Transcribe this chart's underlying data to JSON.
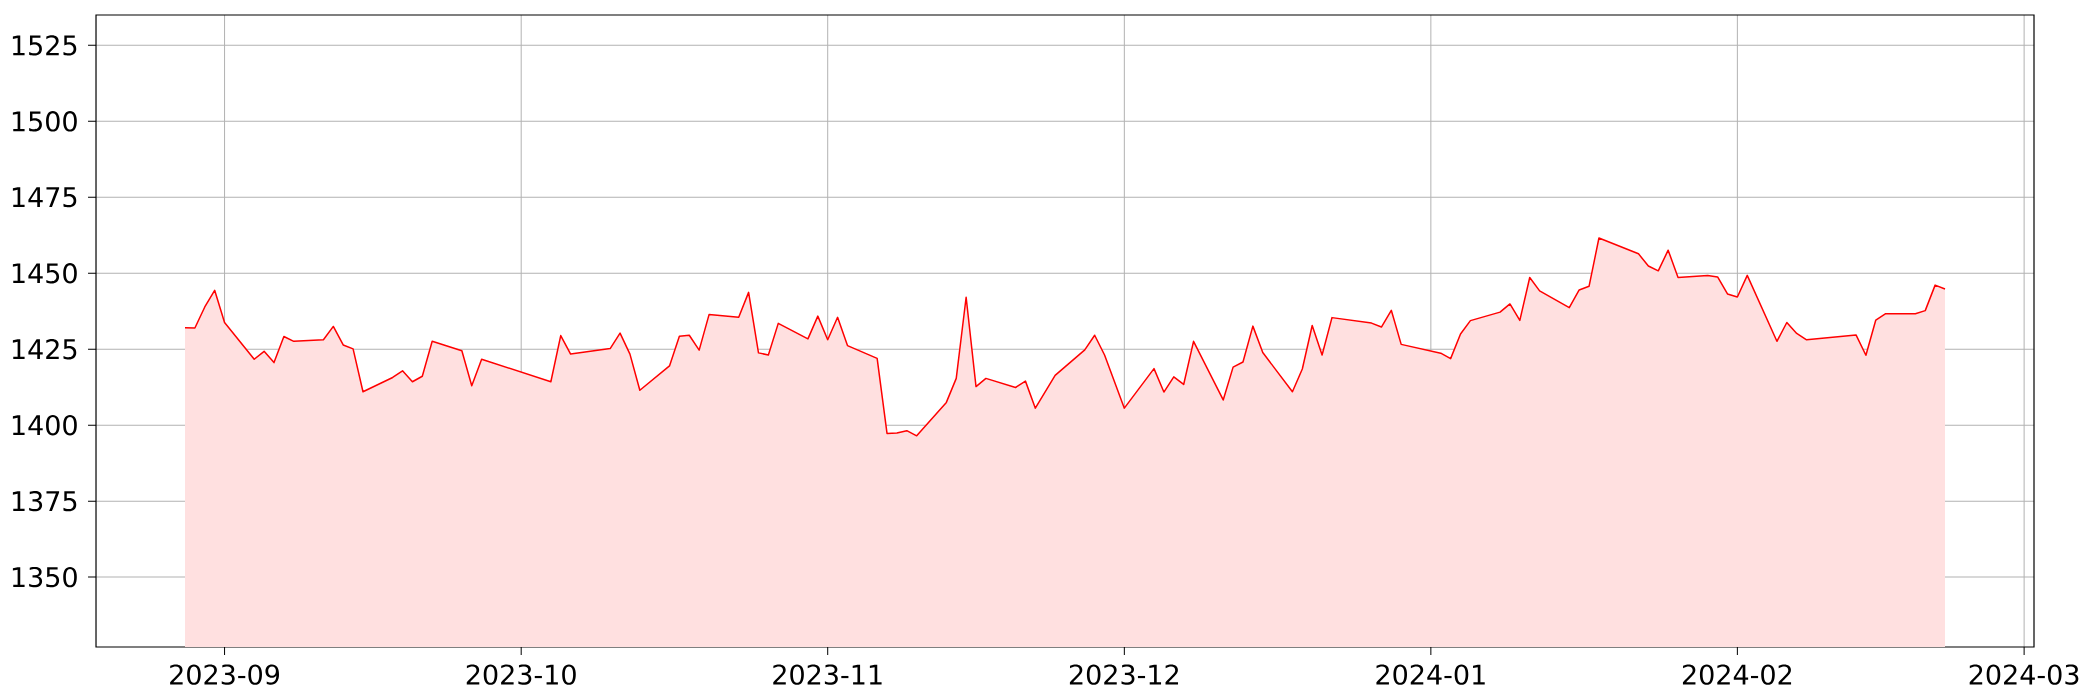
{
  "chart_data": {
    "type": "area",
    "color": "#ff0000",
    "grid": true,
    "xlim": [
      "2023-08-19",
      "2024-03-02"
    ],
    "ylim": [
      1327,
      1535
    ],
    "xticks": [
      {
        "value": "2023-09-01",
        "label": "2023-09"
      },
      {
        "value": "2023-10-01",
        "label": "2023-10"
      },
      {
        "value": "2023-11-01",
        "label": "2023-11"
      },
      {
        "value": "2023-12-01",
        "label": "2023-12"
      },
      {
        "value": "2024-01-01",
        "label": "2024-01"
      },
      {
        "value": "2024-02-01",
        "label": "2024-02"
      },
      {
        "value": "2024-03-01",
        "label": "2024-03"
      }
    ],
    "yticks": [
      1350,
      1375,
      1400,
      1425,
      1450,
      1475,
      1500,
      1525
    ],
    "x": [
      "2023-08-28",
      "2023-08-29",
      "2023-08-30",
      "2023-08-31",
      "2023-09-01",
      "2023-09-04",
      "2023-09-05",
      "2023-09-06",
      "2023-09-07",
      "2023-09-08",
      "2023-09-11",
      "2023-09-12",
      "2023-09-13",
      "2023-09-14",
      "2023-09-15",
      "2023-09-18",
      "2023-09-19",
      "2023-09-20",
      "2023-09-21",
      "2023-09-22",
      "2023-09-25",
      "2023-09-26",
      "2023-09-27",
      "2023-10-04",
      "2023-10-05",
      "2023-10-06",
      "2023-10-10",
      "2023-10-11",
      "2023-10-12",
      "2023-10-13",
      "2023-10-16",
      "2023-10-17",
      "2023-10-18",
      "2023-10-19",
      "2023-10-20",
      "2023-10-23",
      "2023-10-24",
      "2023-10-25",
      "2023-10-26",
      "2023-10-27",
      "2023-10-30",
      "2023-10-31",
      "2023-11-01",
      "2023-11-02",
      "2023-11-03",
      "2023-11-06",
      "2023-11-07",
      "2023-11-08",
      "2023-11-09",
      "2023-11-10",
      "2023-11-13",
      "2023-11-14",
      "2023-11-15",
      "2023-11-16",
      "2023-11-17",
      "2023-11-20",
      "2023-11-21",
      "2023-11-22",
      "2023-11-24",
      "2023-11-27",
      "2023-11-28",
      "2023-11-29",
      "2023-12-01",
      "2023-12-04",
      "2023-12-05",
      "2023-12-06",
      "2023-12-07",
      "2023-12-08",
      "2023-12-11",
      "2023-12-12",
      "2023-12-13",
      "2023-12-14",
      "2023-12-15",
      "2023-12-18",
      "2023-12-19",
      "2023-12-20",
      "2023-12-21",
      "2023-12-22",
      "2023-12-26",
      "2023-12-27",
      "2023-12-28",
      "2023-12-29",
      "2024-01-02",
      "2024-01-03",
      "2024-01-04",
      "2024-01-05",
      "2024-01-08",
      "2024-01-09",
      "2024-01-10",
      "2024-01-11",
      "2024-01-12",
      "2024-01-15",
      "2024-01-16",
      "2024-01-17",
      "2024-01-18",
      "2024-01-22",
      "2024-01-23",
      "2024-01-24",
      "2024-01-25",
      "2024-01-26",
      "2024-01-29",
      "2024-01-30",
      "2024-01-31",
      "2024-02-01",
      "2024-02-02",
      "2024-02-05",
      "2024-02-06",
      "2024-02-07",
      "2024-02-08",
      "2024-02-13",
      "2024-02-14",
      "2024-02-15",
      "2024-02-16",
      "2024-02-19",
      "2024-02-20",
      "2024-02-21",
      "2024-02-22"
    ],
    "values": [
      1432.1,
      1432.0,
      1438.9,
      1444.4,
      1433.8,
      1421.7,
      1424.3,
      1420.6,
      1429.2,
      1427.6,
      1428.1,
      1432.5,
      1426.4,
      1425.1,
      1411.0,
      1415.7,
      1417.9,
      1414.3,
      1416.1,
      1427.6,
      1424.5,
      1413.0,
      1421.7,
      1414.3,
      1429.5,
      1423.4,
      1425.2,
      1430.3,
      1423.4,
      1411.5,
      1419.5,
      1429.3,
      1429.6,
      1424.7,
      1436.4,
      1435.5,
      1443.7,
      1423.8,
      1423.1,
      1433.5,
      1428.4,
      1435.9,
      1428.1,
      1435.5,
      1426.2,
      1422.0,
      1397.3,
      1397.4,
      1398.2,
      1396.5,
      1407.5,
      1415.4,
      1442.1,
      1412.7,
      1415.4,
      1412.4,
      1414.5,
      1405.6,
      1416.4,
      1424.8,
      1429.6,
      1423.1,
      1405.6,
      1418.6,
      1410.9,
      1415.9,
      1413.4,
      1427.6,
      1408.3,
      1419.1,
      1420.8,
      1432.6,
      1423.9,
      1411.0,
      1418.5,
      1432.8,
      1423.1,
      1435.4,
      1433.6,
      1432.3,
      1437.8,
      1426.6,
      1423.7,
      1421.9,
      1430.0,
      1434.4,
      1437.2,
      1439.9,
      1434.5,
      1448.6,
      1444.2,
      1438.7,
      1444.5,
      1445.7,
      1461.6,
      1456.4,
      1452.4,
      1450.8,
      1457.6,
      1448.6,
      1449.3,
      1448.8,
      1443.2,
      1442.2,
      1449.3,
      1427.6,
      1433.8,
      1430.2,
      1428.1,
      1429.7,
      1423.0,
      1434.6,
      1436.7,
      1436.7,
      1437.7,
      1446.1,
      1444.8
    ]
  }
}
